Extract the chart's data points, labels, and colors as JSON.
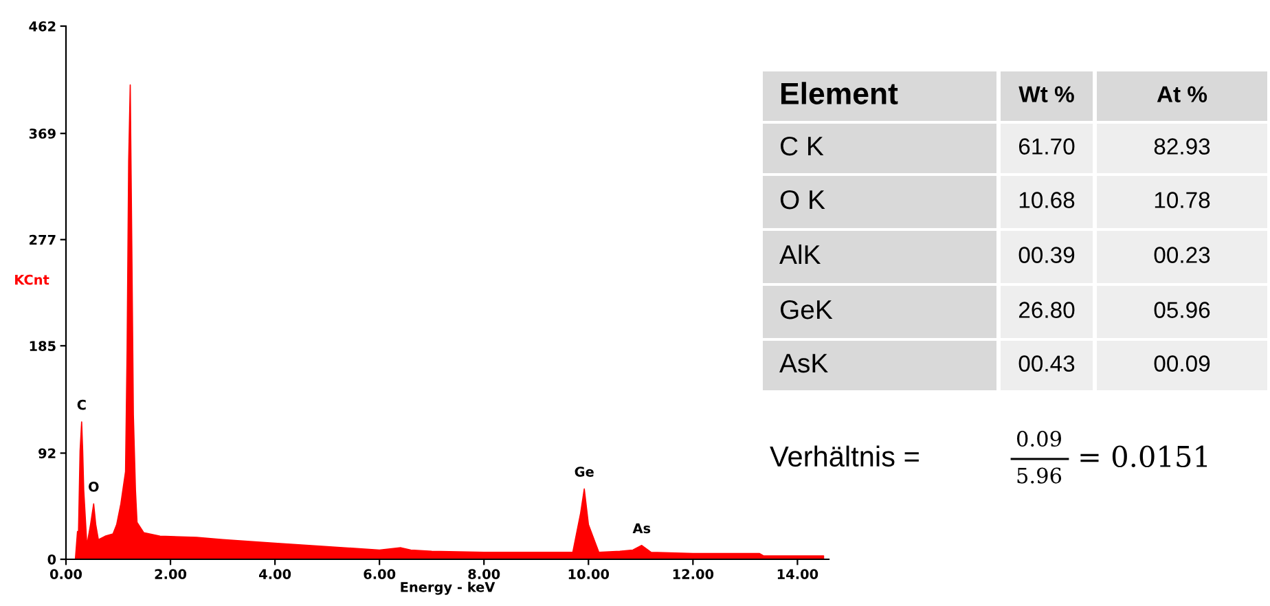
{
  "chart_data": [
    {
      "type": "area",
      "xlabel": "Energy - keV",
      "ylabel": "KCnt",
      "xlim": [
        0,
        14.6
      ],
      "ylim": [
        0,
        462
      ],
      "xticks": [
        {
          "value": 0,
          "label": "0.00"
        },
        {
          "value": 2,
          "label": "2.00"
        },
        {
          "value": 4,
          "label": "4.00"
        },
        {
          "value": 6,
          "label": "6.00"
        },
        {
          "value": 8,
          "label": "8.00"
        },
        {
          "value": 10,
          "label": "10.00"
        },
        {
          "value": 12,
          "label": "12.00"
        },
        {
          "value": 14,
          "label": "14.00"
        }
      ],
      "yticks": [
        0,
        92,
        185,
        277,
        369,
        462
      ],
      "grid": false,
      "legend": false,
      "series": [
        {
          "color": "#ff0000",
          "x": [
            0.18,
            0.22,
            0.24,
            0.27,
            0.3,
            0.32,
            0.34,
            0.4,
            0.47,
            0.53,
            0.57,
            0.62,
            0.75,
            0.9,
            0.97,
            1.05,
            1.14,
            1.17,
            1.2,
            1.23,
            1.26,
            1.29,
            1.33,
            1.36,
            1.49,
            1.8,
            2.5,
            3.0,
            4.0,
            5.0,
            6.0,
            6.41,
            6.6,
            7.0,
            8.0,
            9.0,
            9.7,
            9.85,
            9.92,
            10.0,
            10.2,
            10.6,
            10.85,
            11.02,
            11.2,
            12.0,
            13.27,
            13.35,
            14.0,
            14.5
          ],
          "values": [
            0,
            24,
            24,
            94,
            119,
            94,
            60,
            12,
            30,
            48,
            30,
            17,
            20,
            22,
            30,
            48,
            76,
            181,
            345,
            411,
            272,
            125,
            60,
            32,
            23,
            20,
            19,
            17,
            14,
            11,
            8,
            10,
            8,
            7,
            6,
            6,
            6,
            40,
            61,
            30,
            6,
            7,
            8,
            12,
            6,
            5,
            5,
            3,
            3,
            3
          ]
        }
      ],
      "annotations": [
        {
          "text": "C",
          "x": 0.3,
          "y": 119
        },
        {
          "text": "O",
          "x": 0.53,
          "y": 48
        },
        {
          "text": "Ge",
          "x": 9.92,
          "y": 61
        },
        {
          "text": "As",
          "x": 11.02,
          "y": 12
        }
      ]
    },
    {
      "type": "other",
      "annotations": [
        "Element",
        "Wt %",
        "At %",
        "C K",
        "61.70",
        "82.93",
        "O K",
        "10.68",
        "10.78",
        "AlK",
        "00.39",
        "00.23",
        "GeK",
        "26.80",
        "05.96",
        "AsK",
        "00.43",
        "00.09",
        "Verhältnis =",
        "0.09",
        "5.96",
        "= 0.0151"
      ]
    }
  ]
}
